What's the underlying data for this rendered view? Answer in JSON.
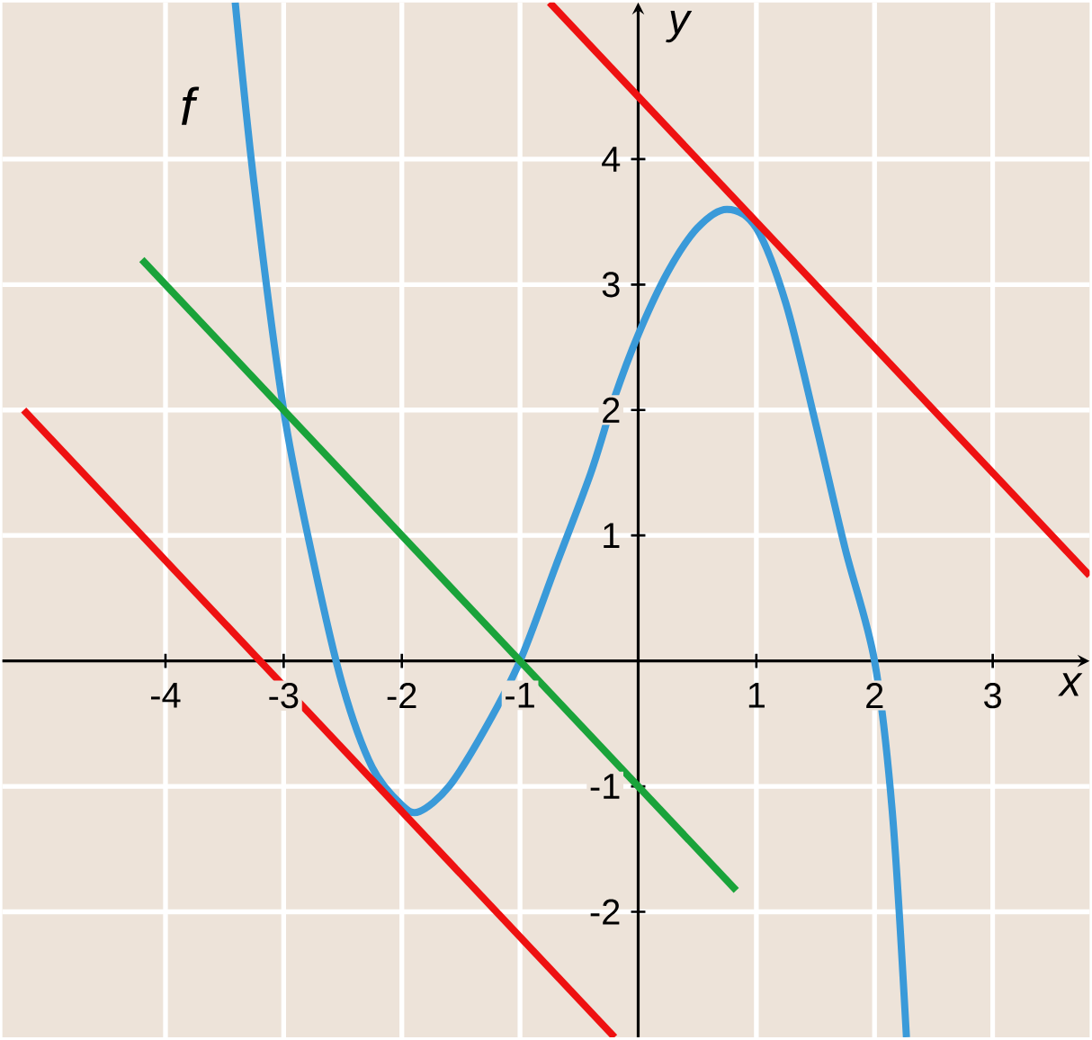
{
  "chart_data": {
    "type": "line",
    "xlabel": "x",
    "ylabel": "y",
    "xlim": [
      -5.38,
      3.82
    ],
    "ylim": [
      -3.0,
      5.25
    ],
    "xticks": [
      -4,
      -3,
      -2,
      -1,
      1,
      2,
      3
    ],
    "yticks": [
      -2,
      -1,
      1,
      2,
      3,
      4
    ],
    "grid": true,
    "marker": "none",
    "line_style": "solid",
    "annotations": [
      "f"
    ],
    "series": [
      {
        "color": "#3a9ad9",
        "x": [
          -3.41,
          -3.25,
          -3.0,
          -2.75,
          -2.5,
          -2.25,
          -2.0,
          -1.85,
          -1.6,
          -1.3,
          -1.0,
          -0.7,
          -0.4,
          -0.2,
          0.0,
          0.25,
          0.5,
          0.75,
          1.0,
          1.25,
          1.5,
          1.75,
          2.0,
          2.15,
          2.27
        ],
        "values": [
          5.25,
          3.8,
          2.0,
          0.8,
          -0.2,
          -0.85,
          -1.15,
          -1.2,
          -1.0,
          -0.55,
          0.0,
          0.75,
          1.5,
          2.1,
          2.6,
          3.1,
          3.45,
          3.6,
          3.45,
          2.85,
          1.9,
          0.9,
          0.0,
          -1.2,
          -3.0
        ]
      },
      {
        "color": "#1aa33a",
        "x": [
          -4.2,
          0.83
        ],
        "values": [
          3.2,
          -1.83
        ]
      },
      {
        "color": "#ee1111",
        "x": [
          -0.75,
          3.82
        ],
        "values": [
          5.25,
          0.68
        ]
      },
      {
        "color": "#ee1111",
        "x": [
          -5.2,
          -0.2
        ],
        "values": [
          2.0,
          -3.0
        ]
      }
    ]
  }
}
